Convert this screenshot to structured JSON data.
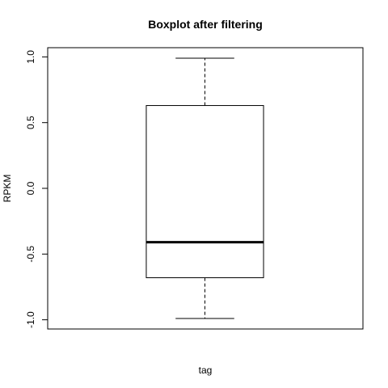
{
  "chart_data": {
    "type": "boxplot",
    "title": "Boxplot after filtering",
    "xlabel": "tag",
    "ylabel": "RPKM",
    "ylim": [
      -1.07,
      1.07
    ],
    "yticks": [
      -1.0,
      -0.5,
      0.0,
      0.5,
      1.0
    ],
    "ytick_labels": [
      "-1.0",
      "-0.5",
      "0.0",
      "0.5",
      "1.0"
    ],
    "grid": false,
    "boxes": [
      {
        "whisker_low": -0.99,
        "q1": -0.68,
        "median": -0.41,
        "q3": 0.63,
        "whisker_high": 0.99
      }
    ]
  }
}
